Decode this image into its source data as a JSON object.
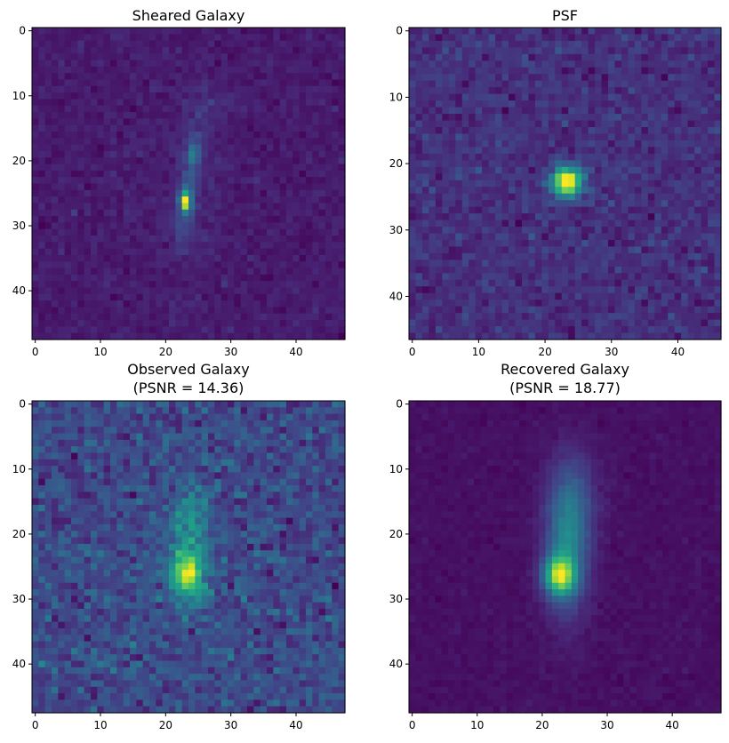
{
  "chart_data": [
    {
      "type": "heatmap",
      "title": "Sheared Galaxy",
      "psnr_label": "",
      "image_size": [
        48,
        48
      ],
      "xlim": [
        -0.5,
        47.5
      ],
      "ylim": [
        47.5,
        -0.5
      ],
      "xticks": [
        0,
        10,
        20,
        30,
        40
      ],
      "yticks": [
        0,
        10,
        20,
        30,
        40
      ],
      "colormap": "viridis",
      "grid": false,
      "noise": 0.03,
      "seed": 11,
      "background": 0.05,
      "components": [
        {
          "cx": 23,
          "cy": 26.3,
          "sx": 0.55,
          "sy": 0.9,
          "amp": 0.95
        },
        {
          "cx": 23.3,
          "cy": 25.5,
          "sx": 0.9,
          "sy": 3.2,
          "amp": 0.22
        },
        {
          "cx": 24.3,
          "cy": 19,
          "sx": 0.7,
          "sy": 1.0,
          "amp": 0.3
        },
        {
          "cx": 24.2,
          "cy": 19.5,
          "sx": 0.9,
          "sy": 4.0,
          "amp": 0.13
        },
        {
          "cx": 22.5,
          "cy": 30,
          "sx": 1.2,
          "sy": 3.0,
          "amp": 0.1
        },
        {
          "cx": 26,
          "cy": 13,
          "sx": 1.0,
          "sy": 4.0,
          "amp": 0.07
        },
        {
          "cx": 29.5,
          "cy": 11,
          "sx": 3.0,
          "sy": 1.0,
          "amp": 0.05
        },
        {
          "cx": 23.5,
          "cy": 24,
          "sx": 4.0,
          "sy": 10.0,
          "amp": 0.04
        }
      ]
    },
    {
      "type": "heatmap",
      "title": "PSF",
      "psnr_label": "",
      "image_size": [
        47,
        47
      ],
      "xlim": [
        -0.5,
        46.5
      ],
      "ylim": [
        46.5,
        -0.5
      ],
      "xticks": [
        0,
        10,
        20,
        30,
        40
      ],
      "yticks": [
        0,
        10,
        20,
        30,
        40
      ],
      "colormap": "viridis",
      "grid": false,
      "noise": 0.045,
      "seed": 23,
      "background": 0.09,
      "components": [
        {
          "cx": 23.3,
          "cy": 22.8,
          "sx": 1.6,
          "sy": 1.6,
          "amp": 0.9
        }
      ]
    },
    {
      "type": "heatmap",
      "title": "Observed Galaxy",
      "psnr_label": "(PSNR = 14.36)",
      "image_size": [
        48,
        48
      ],
      "xlim": [
        -0.5,
        47.5
      ],
      "ylim": [
        47.5,
        -0.5
      ],
      "xticks": [
        0,
        10,
        20,
        30,
        40
      ],
      "yticks": [
        0,
        10,
        20,
        30,
        40
      ],
      "colormap": "viridis",
      "grid": false,
      "noise": 0.085,
      "seed": 37,
      "background": 0.2,
      "components": [
        {
          "cx": 23.2,
          "cy": 26.3,
          "sx": 1.7,
          "sy": 2.2,
          "amp": 0.62
        },
        {
          "cx": 23.6,
          "cy": 23,
          "sx": 2.4,
          "sy": 6.0,
          "amp": 0.3
        },
        {
          "cx": 24,
          "cy": 17,
          "sx": 2.0,
          "sy": 3.0,
          "amp": 0.12
        }
      ]
    },
    {
      "type": "heatmap",
      "title": "Recovered Galaxy",
      "psnr_label": "(PSNR = 18.77)",
      "image_size": [
        48,
        48
      ],
      "xlim": [
        -0.5,
        47.5
      ],
      "ylim": [
        47.5,
        -0.5
      ],
      "xticks": [
        0,
        10,
        20,
        30,
        40
      ],
      "yticks": [
        0,
        10,
        20,
        30,
        40
      ],
      "colormap": "viridis",
      "grid": false,
      "noise": 0.012,
      "seed": 53,
      "background": 0.13,
      "components": [
        {
          "cx": 22.6,
          "cy": 26.4,
          "sx": 1.6,
          "sy": 2.0,
          "amp": 0.62
        },
        {
          "cx": 23.8,
          "cy": 22,
          "sx": 2.3,
          "sy": 7.0,
          "amp": 0.35
        },
        {
          "cx": 25,
          "cy": 14,
          "sx": 2.5,
          "sy": 5.0,
          "amp": 0.12
        }
      ]
    }
  ]
}
